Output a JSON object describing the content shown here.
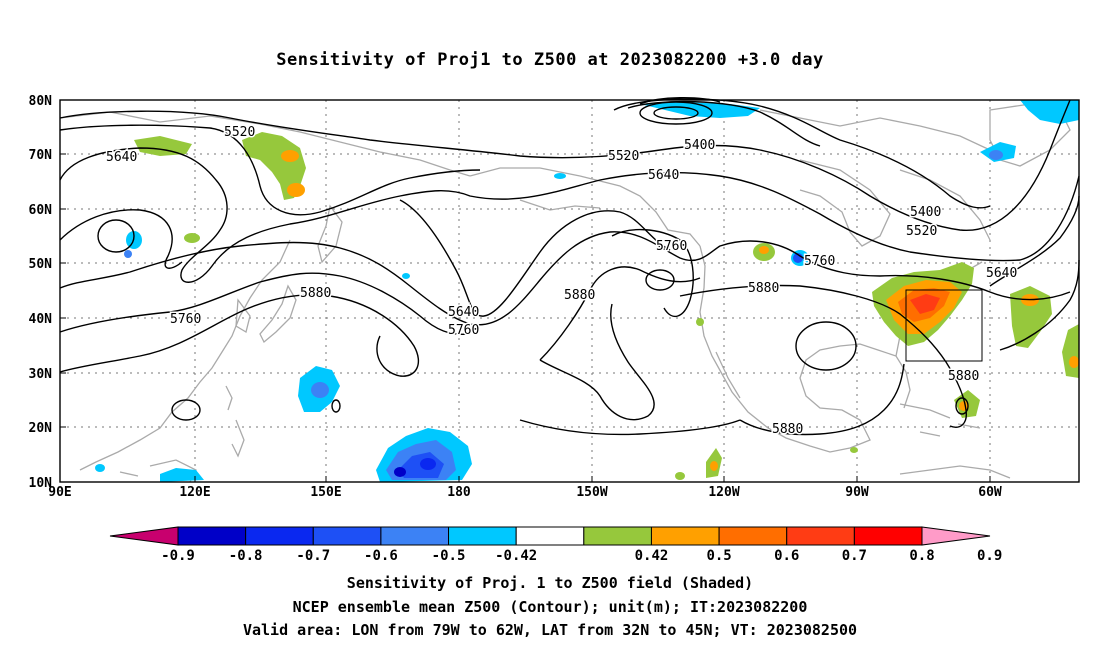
{
  "title": "Sensitivity of Proj1 to Z500 at 2023082200 +3.0 day",
  "lat_labels": [
    "80N",
    "70N",
    "60N",
    "50N",
    "40N",
    "30N",
    "20N",
    "10N"
  ],
  "lon_labels": [
    "90E",
    "120E",
    "150E",
    "180",
    "150W",
    "120W",
    "90W",
    "60W"
  ],
  "contour_labels": [
    "5520",
    "5640",
    "5400",
    "5520",
    "5640",
    "5400",
    "5520",
    "5760",
    "5760",
    "5640",
    "5880",
    "5760",
    "5640",
    "5760",
    "5880",
    "5880",
    "5880",
    "5880"
  ],
  "colorbar": {
    "labels": [
      "-0.9",
      "-0.8",
      "-0.7",
      "-0.6",
      "-0.5",
      "-0.42",
      "0.42",
      "0.5",
      "0.6",
      "0.7",
      "0.8",
      "0.9"
    ],
    "colors": [
      "#c8006e",
      "#0000c8",
      "#0a28f0",
      "#1e50f5",
      "#3c82f5",
      "#00c8ff",
      "#ffffff",
      "#96c83c",
      "#ffa000",
      "#ff6e00",
      "#ff3c14",
      "#ff0000",
      "#ff9bc8"
    ]
  },
  "captions": [
    "Sensitivity of Proj. 1 to Z500 field (Shaded)",
    "NCEP ensemble mean Z500 (Contour); unit(m); IT:2023082200",
    "Valid area: LON from 79W to 62W, LAT from 32N to 45N; VT: 2023082500"
  ],
  "valid_area": {
    "lon": [
      -79,
      -62
    ],
    "lat": [
      32,
      45
    ]
  }
}
